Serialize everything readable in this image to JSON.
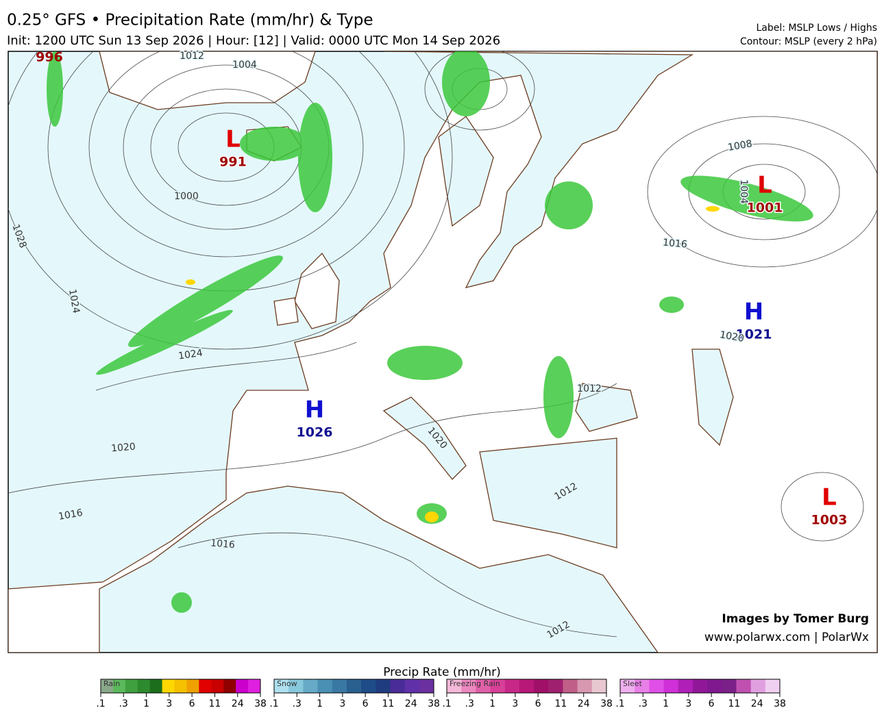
{
  "header": {
    "title": "0.25° GFS • Precipitation Rate (mm/hr) & Type",
    "subtitle": "Init: 1200 UTC Sun 13 Sep 2026 | Hour: [12] | Valid: 0000 UTC Mon 14 Sep 2026",
    "notes": [
      "Label: MSLP Lows / Highs",
      "Contour: MSLP (every 2 hPa)"
    ]
  },
  "pressure_centers": [
    {
      "type": "L",
      "value": "991"
    },
    {
      "type": "L",
      "value": "1001"
    },
    {
      "type": "H",
      "value": "1021"
    },
    {
      "type": "H",
      "value": "1026"
    },
    {
      "type": "L",
      "value": "1003"
    }
  ],
  "edge_labels": [
    "996"
  ],
  "contour_labels": [
    "1012",
    "1004",
    "1000",
    "1028",
    "1024",
    "1024",
    "1020",
    "1016",
    "1016",
    "1008",
    "1004",
    "1016",
    "1020",
    "1012",
    "1020",
    "1012",
    "1012"
  ],
  "credits": [
    "Images by Tomer Burg",
    "www.polarwx.com | PolarWx"
  ],
  "legend": {
    "title": "Precip Rate (mm/hr)",
    "bars": [
      {
        "name": "Rain",
        "colors": [
          "#8aa88a",
          "#5cb85c",
          "#3fa03f",
          "#2e8a2e",
          "#1c6e1c",
          "#ffd700",
          "#f5c000",
          "#f0a000",
          "#e00000",
          "#c80000",
          "#900000",
          "#cc00cc",
          "#e020e0"
        ]
      },
      {
        "name": "Snow",
        "colors": [
          "#aee0ee",
          "#88c8dc",
          "#66aac8",
          "#4a90b4",
          "#3a78a4",
          "#2a6090",
          "#1e4c88",
          "#203c80",
          "#4a2c98",
          "#6030a8",
          "#6a30a0"
        ]
      },
      {
        "name": "Freezing Rain",
        "colors": [
          "#f4b8d8",
          "#ec88c0",
          "#e060a8",
          "#d84098",
          "#c82888",
          "#b81878",
          "#a01068",
          "#a02070",
          "#c06088",
          "#d898b0",
          "#e8c8d0"
        ]
      },
      {
        "name": "Sleet",
        "colors": [
          "#f0b0f0",
          "#e880e8",
          "#e050e8",
          "#d030d8",
          "#b020b8",
          "#901898",
          "#801890",
          "#7a2088",
          "#c050b0",
          "#e0a0e0",
          "#f0d0f0"
        ]
      }
    ],
    "ticks": [
      ".1",
      ".3",
      "1",
      "3",
      "6",
      "11",
      "24",
      "38"
    ]
  }
}
